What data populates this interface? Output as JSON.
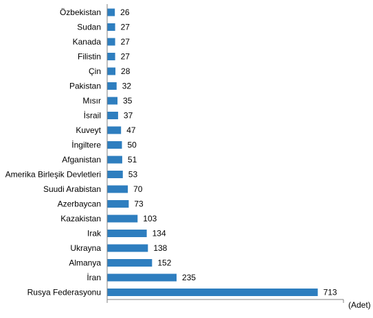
{
  "chart_data": {
    "type": "bar",
    "orientation": "horizontal",
    "categories": [
      "Özbekistan",
      "Sudan",
      "Kanada",
      "Filistin",
      "Çin",
      "Pakistan",
      "Mısır",
      "İsrail",
      "Kuveyt",
      "İngiltere",
      "Afganistan",
      "Amerika Birleşik Devletleri",
      "Suudi Arabistan",
      "Azerbaycan",
      "Kazakistan",
      "Irak",
      "Ukrayna",
      "Almanya",
      "İran",
      "Rusya Federasyonu"
    ],
    "values": [
      26,
      27,
      27,
      27,
      28,
      32,
      35,
      37,
      47,
      50,
      51,
      53,
      70,
      73,
      103,
      134,
      138,
      152,
      235,
      713
    ],
    "unit_label": "(Adet)",
    "xlim": [
      0,
      800
    ],
    "bar_color": "#2e7ebf",
    "axis_color": "#808080",
    "grid": false,
    "legend": "none"
  }
}
